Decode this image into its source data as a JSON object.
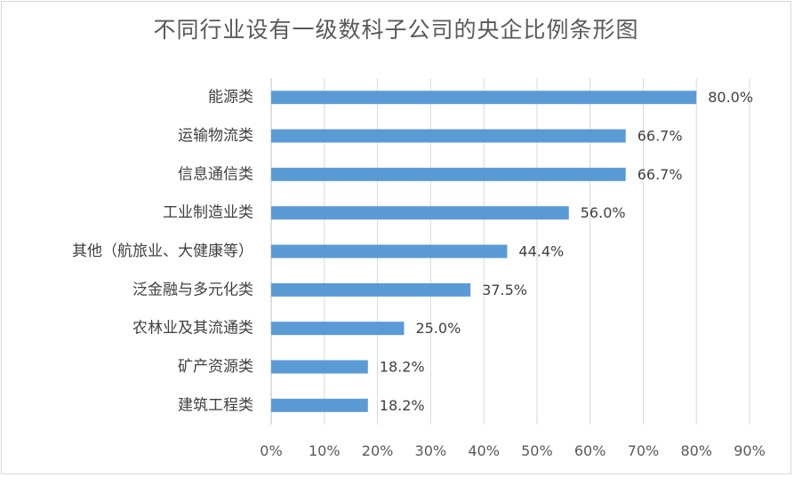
{
  "chart_data": {
    "type": "bar",
    "orientation": "horizontal",
    "title": "不同行业设有一级数科子公司的央企比例条形图",
    "categories": [
      "能源类",
      "运输物流类",
      "信息通信类",
      "工业制造业类",
      "其他（航旅业、大健康等）",
      "泛金融与多元化类",
      "农林业及其流通类",
      "矿产资源类",
      "建筑工程类"
    ],
    "values": [
      80.0,
      66.7,
      66.7,
      56.0,
      44.4,
      37.5,
      25.0,
      18.2,
      18.2
    ],
    "value_labels": [
      "80.0%",
      "66.7%",
      "66.7%",
      "56.0%",
      "44.4%",
      "37.5%",
      "25.0%",
      "18.2%",
      "18.2%"
    ],
    "xlim": [
      0,
      90
    ],
    "x_ticks": [
      "0%",
      "10%",
      "20%",
      "30%",
      "40%",
      "50%",
      "60%",
      "70%",
      "80%",
      "90%"
    ],
    "xlabel": "",
    "ylabel": "",
    "grid": "vertical",
    "legend": "none",
    "bar_color": "#5b9bd5"
  }
}
